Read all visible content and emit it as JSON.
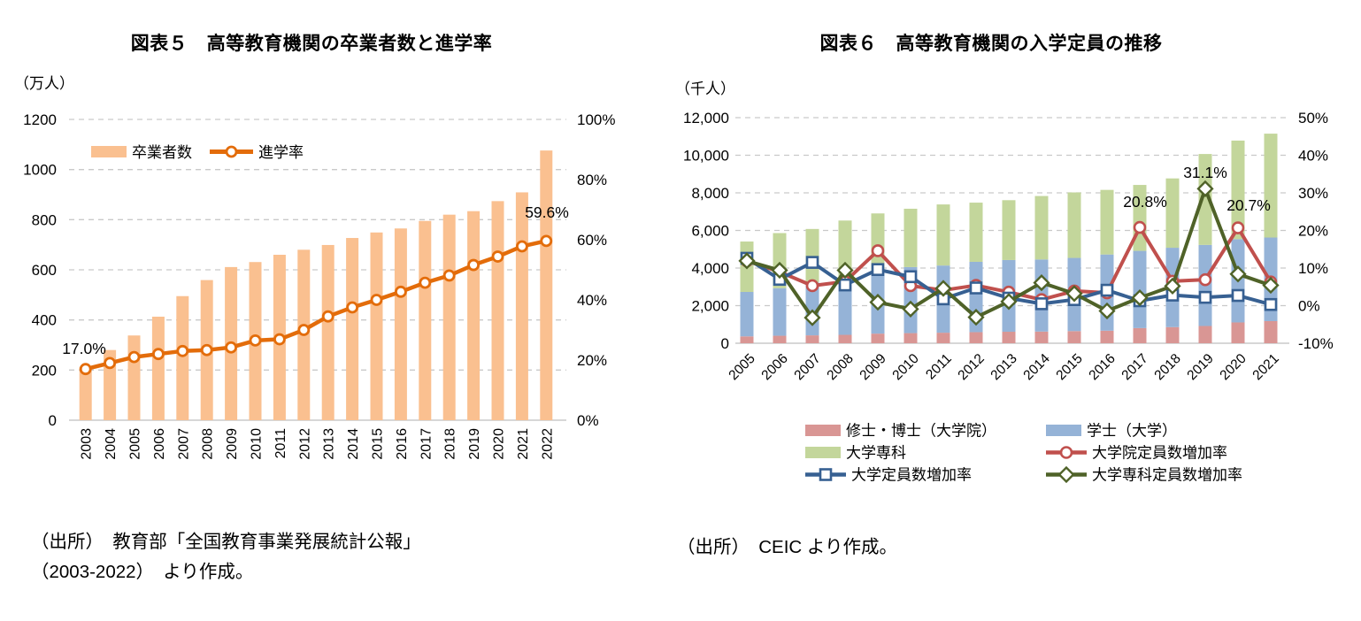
{
  "figure5": {
    "title": "図表５　高等教育機関の卒業者数と進学率",
    "unit": "（万人）",
    "legend": {
      "bar_label": "卒業者数",
      "line_label": "進学率"
    },
    "source_line1": "（出所）　教育部「全国教育事業発展統計公報」",
    "source_line2": "（2003-2022）　より作成。"
  },
  "figure6": {
    "title": "図表６　高等教育機関の入学定員の推移",
    "unit": "（千人）",
    "source": "（出所）　CEIC より作成。"
  },
  "colors": {
    "fig5_bar": "#FAC090",
    "fig5_line": "#E36C0A",
    "fig6_master": "#D99694",
    "fig6_bachelor": "#95B3D7",
    "fig6_junior": "#C3D69B",
    "fig6_grad_rate": "#C0504D",
    "fig6_univ_rate": "#376092",
    "fig6_junior_rate": "#4F6228",
    "grid": "#C9C9C9",
    "axis": "#BFBFBF",
    "text": "#000000"
  },
  "chart_data": [
    {
      "id": "figure5",
      "type": "bar",
      "subtype": "bar+line-dual-axis",
      "title": "図表５　高等教育機関の卒業者数と進学率",
      "xlabel": "",
      "ylabel": "（万人）",
      "categories": [
        "2003",
        "2004",
        "2005",
        "2006",
        "2007",
        "2008",
        "2009",
        "2010",
        "2011",
        "2012",
        "2013",
        "2014",
        "2015",
        "2016",
        "2017",
        "2018",
        "2019",
        "2020",
        "2021",
        "2022"
      ],
      "series": [
        {
          "name": "卒業者数",
          "type": "bar",
          "axis": "left",
          "color": "#FAC090",
          "values": [
            212,
            280,
            338,
            413,
            495,
            559,
            611,
            631,
            660,
            680,
            699,
            727,
            749,
            765,
            795,
            820,
            834,
            874,
            909,
            1076
          ]
        },
        {
          "name": "進学率",
          "type": "line",
          "axis": "right",
          "color": "#E36C0A",
          "marker": "circle",
          "values": [
            17.0,
            19.0,
            21.0,
            22.0,
            23.0,
            23.3,
            24.2,
            26.5,
            26.9,
            30.0,
            34.5,
            37.5,
            40.0,
            42.7,
            45.7,
            48.1,
            51.6,
            54.4,
            57.8,
            59.6
          ]
        }
      ],
      "left_axis": {
        "min": 0,
        "max": 1200,
        "step": 200,
        "ticks": [
          "1200",
          "1000",
          "800",
          "600",
          "400",
          "200",
          "0"
        ]
      },
      "right_axis": {
        "min": 0,
        "max": 100,
        "step": 20,
        "ticks": [
          "100%",
          "80%",
          "60%",
          "40%",
          "20%",
          "0%"
        ]
      },
      "annotations": [
        {
          "text": "17.0%",
          "x_index": 0,
          "series": "進学率"
        },
        {
          "text": "59.6%",
          "x_index": 19,
          "series": "進学率"
        }
      ],
      "grid": "horizontal-dashed",
      "legend_position": "inside-top-left"
    },
    {
      "id": "figure6",
      "type": "bar",
      "subtype": "stacked-bar+lines-dual-axis",
      "title": "図表６　高等教育機関の入学定員の推移",
      "xlabel": "",
      "ylabel": "（千人）",
      "categories": [
        "2005",
        "2006",
        "2007",
        "2008",
        "2009",
        "2010",
        "2011",
        "2012",
        "2013",
        "2014",
        "2015",
        "2016",
        "2017",
        "2018",
        "2019",
        "2020",
        "2021"
      ],
      "bar_series": [
        {
          "name": "修士・博士（大学院）",
          "color": "#D99694",
          "values": [
            365,
            398,
            419,
            446,
            511,
            538,
            560,
            590,
            611,
            621,
            645,
            667,
            806,
            858,
            917,
            1107,
            1177
          ]
        },
        {
          "name": "学士（大学）",
          "color": "#95B3D7",
          "values": [
            2364,
            2530,
            2821,
            2976,
            3261,
            3512,
            3574,
            3741,
            3815,
            3834,
            3894,
            4054,
            4108,
            4222,
            4313,
            4431,
            4446
          ]
        },
        {
          "name": "大学専科",
          "color": "#C3D69B",
          "values": [
            2681,
            2932,
            2838,
            3105,
            3134,
            3105,
            3249,
            3148,
            3184,
            3377,
            3484,
            3436,
            3507,
            3688,
            4836,
            5243,
            5526
          ]
        }
      ],
      "line_series": [
        {
          "name": "大学院定員数増加率",
          "color": "#C0504D",
          "marker": "circle",
          "values": [
            11.9,
            9.0,
            5.3,
            6.4,
            14.6,
            5.3,
            4.1,
            5.4,
            3.6,
            1.6,
            3.9,
            3.4,
            20.8,
            6.5,
            6.9,
            20.7,
            6.3
          ]
        },
        {
          "name": "大学定員数増加率",
          "color": "#376092",
          "marker": "square",
          "values": [
            12.6,
            7.0,
            11.5,
            5.5,
            9.6,
            7.7,
            1.8,
            4.7,
            2.0,
            0.5,
            1.6,
            4.1,
            1.3,
            2.8,
            2.2,
            2.7,
            0.3
          ]
        },
        {
          "name": "大学専科定員数増加率",
          "color": "#4F6228",
          "marker": "diamond",
          "values": [
            11.9,
            9.4,
            -3.2,
            9.4,
            0.9,
            -0.9,
            4.6,
            -3.1,
            1.1,
            6.1,
            3.2,
            -1.4,
            2.1,
            5.2,
            31.1,
            8.4,
            5.4
          ]
        }
      ],
      "left_axis": {
        "min": 0,
        "max": 12000,
        "step": 2000,
        "ticks": [
          "12,000",
          "10,000",
          "8,000",
          "6,000",
          "4,000",
          "2,000",
          "0"
        ]
      },
      "right_axis": {
        "min": -10,
        "max": 50,
        "step": 10,
        "ticks": [
          "50%",
          "40%",
          "30%",
          "20%",
          "10%",
          "0%",
          "-10%"
        ]
      },
      "annotations": [
        {
          "text": "20.8%",
          "x_index": 12,
          "series": "大学院定員数増加率"
        },
        {
          "text": "31.1%",
          "x_index": 14,
          "series": "大学専科定員数増加率"
        },
        {
          "text": "20.7%",
          "x_index": 15,
          "series": "大学院定員数増加率"
        }
      ],
      "legend_items": [
        {
          "label": "修士・博士（大学院）",
          "swatch": "bar",
          "color": "#D99694"
        },
        {
          "label": "学士（大学）",
          "swatch": "bar",
          "color": "#95B3D7"
        },
        {
          "label": "大学専科",
          "swatch": "bar",
          "color": "#C3D69B"
        },
        {
          "label": "大学院定員数増加率",
          "swatch": "line-circle",
          "color": "#C0504D"
        },
        {
          "label": "大学定員数増加率",
          "swatch": "line-square",
          "color": "#376092"
        },
        {
          "label": "大学専科定員数増加率",
          "swatch": "line-diamond",
          "color": "#4F6228"
        }
      ],
      "grid": "horizontal-dashed",
      "legend_position": "bottom"
    }
  ]
}
